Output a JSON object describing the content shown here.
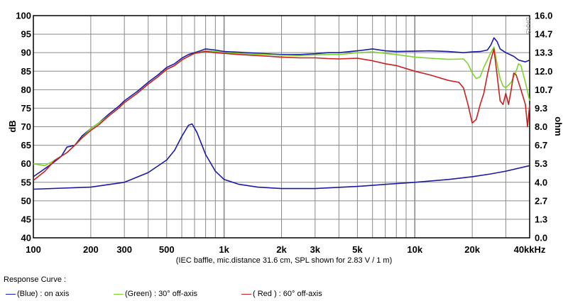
{
  "chart_data": {
    "type": "line",
    "watermark": "DAAS",
    "xlabel_suffix": "kHz",
    "caption": "(IEC baffle, mic.distance 31.6 cm, SPL shown for 2.83 V / 1 m)",
    "x_scale": "log",
    "xlim": [
      100,
      40000
    ],
    "x_ticks": [
      {
        "v": 100,
        "label": "100"
      },
      {
        "v": 200,
        "label": "200"
      },
      {
        "v": 300,
        "label": "300"
      },
      {
        "v": 500,
        "label": "500"
      },
      {
        "v": 1000,
        "label": "1k"
      },
      {
        "v": 2000,
        "label": "2k"
      },
      {
        "v": 3000,
        "label": "3k"
      },
      {
        "v": 5000,
        "label": "5k"
      },
      {
        "v": 10000,
        "label": "10k"
      },
      {
        "v": 20000,
        "label": "20k"
      },
      {
        "v": 40000,
        "label": "40k"
      }
    ],
    "y_left": {
      "label": "dB",
      "lim": [
        40,
        100
      ],
      "ticks": [
        "40",
        "45",
        "50",
        "55",
        "60",
        "65",
        "70",
        "75",
        "80",
        "85",
        "90",
        "95",
        "100"
      ]
    },
    "y_right": {
      "label": "ohm",
      "lim": [
        0,
        16
      ],
      "ticks": [
        "0.0",
        "1.3",
        "2.7",
        "4.0",
        "5.3",
        "6.7",
        "8.0",
        "9.3",
        "10.7",
        "12.0",
        "13.3",
        "14.7",
        "16.0"
      ]
    },
    "grid": true,
    "series": [
      {
        "name": "(Blue)  : on axis",
        "color": "#1a1aa6",
        "axis": "left",
        "points": [
          [
            100,
            56.5
          ],
          [
            110,
            58
          ],
          [
            125,
            60
          ],
          [
            140,
            62
          ],
          [
            150,
            64.5
          ],
          [
            165,
            65
          ],
          [
            180,
            67.5
          ],
          [
            200,
            69.5
          ],
          [
            220,
            71
          ],
          [
            250,
            73.5
          ],
          [
            280,
            75.5
          ],
          [
            300,
            77
          ],
          [
            350,
            79.5
          ],
          [
            400,
            82
          ],
          [
            450,
            84
          ],
          [
            500,
            86
          ],
          [
            550,
            87
          ],
          [
            600,
            88.5
          ],
          [
            650,
            89.5
          ],
          [
            700,
            90
          ],
          [
            750,
            90.5
          ],
          [
            800,
            91
          ],
          [
            900,
            90.7
          ],
          [
            1000,
            90.3
          ],
          [
            1200,
            90.1
          ],
          [
            1500,
            89.8
          ],
          [
            2000,
            89.5
          ],
          [
            2500,
            89.5
          ],
          [
            3000,
            89.7
          ],
          [
            3500,
            90
          ],
          [
            4000,
            90
          ],
          [
            5000,
            90.5
          ],
          [
            6000,
            91
          ],
          [
            7000,
            90.5
          ],
          [
            8000,
            90.3
          ],
          [
            10000,
            90.4
          ],
          [
            12000,
            90.5
          ],
          [
            15000,
            90.3
          ],
          [
            18000,
            90
          ],
          [
            20000,
            90.2
          ],
          [
            22000,
            90.3
          ],
          [
            24000,
            90.7
          ],
          [
            25000,
            92
          ],
          [
            26000,
            94
          ],
          [
            27000,
            93
          ],
          [
            28000,
            91
          ],
          [
            30000,
            90
          ],
          [
            33000,
            89
          ],
          [
            35000,
            88
          ],
          [
            38000,
            87.5
          ],
          [
            40000,
            88
          ]
        ]
      },
      {
        "name": "(Green) : 30° off-axis",
        "color": "#7ad62b",
        "axis": "left",
        "points": [
          [
            100,
            60
          ],
          [
            115,
            59.5
          ],
          [
            130,
            61
          ],
          [
            150,
            63
          ],
          [
            165,
            65
          ],
          [
            180,
            67
          ],
          [
            200,
            69.5
          ],
          [
            220,
            71
          ],
          [
            250,
            73
          ],
          [
            280,
            75
          ],
          [
            300,
            76.5
          ],
          [
            350,
            79
          ],
          [
            400,
            81.5
          ],
          [
            450,
            83.5
          ],
          [
            500,
            85.5
          ],
          [
            550,
            86.5
          ],
          [
            600,
            88
          ],
          [
            650,
            89
          ],
          [
            700,
            89.8
          ],
          [
            800,
            90.5
          ],
          [
            900,
            90.3
          ],
          [
            1000,
            90
          ],
          [
            1200,
            89.8
          ],
          [
            1500,
            89.6
          ],
          [
            2000,
            89.3
          ],
          [
            2500,
            89.2
          ],
          [
            3000,
            89.4
          ],
          [
            3500,
            89.5
          ],
          [
            4000,
            89.5
          ],
          [
            5000,
            90
          ],
          [
            6000,
            90.2
          ],
          [
            7000,
            89.8
          ],
          [
            8000,
            89.5
          ],
          [
            10000,
            88.8
          ],
          [
            12000,
            88.5
          ],
          [
            15000,
            88.2
          ],
          [
            18000,
            88.3
          ],
          [
            19000,
            87
          ],
          [
            20000,
            84.5
          ],
          [
            21000,
            83
          ],
          [
            22000,
            83.5
          ],
          [
            23000,
            86
          ],
          [
            24000,
            88
          ],
          [
            25000,
            90
          ],
          [
            26000,
            91.5
          ],
          [
            27000,
            87
          ],
          [
            28000,
            83
          ],
          [
            29000,
            81
          ],
          [
            30000,
            80.5
          ],
          [
            32000,
            82
          ],
          [
            34000,
            85
          ],
          [
            35000,
            87
          ],
          [
            36000,
            86.5
          ],
          [
            38000,
            82
          ],
          [
            40000,
            77
          ]
        ]
      },
      {
        "name": "( Red ) : 60° off-axis",
        "color": "#cc1f1f",
        "axis": "left",
        "points": [
          [
            100,
            55.5
          ],
          [
            115,
            58
          ],
          [
            130,
            61
          ],
          [
            150,
            63
          ],
          [
            165,
            65
          ],
          [
            180,
            67
          ],
          [
            200,
            69
          ],
          [
            220,
            70.5
          ],
          [
            250,
            73
          ],
          [
            280,
            75
          ],
          [
            300,
            76.5
          ],
          [
            350,
            79
          ],
          [
            400,
            81.5
          ],
          [
            450,
            83.5
          ],
          [
            500,
            85.5
          ],
          [
            550,
            86.5
          ],
          [
            600,
            88
          ],
          [
            650,
            89
          ],
          [
            700,
            89.8
          ],
          [
            800,
            90.3
          ],
          [
            900,
            90
          ],
          [
            1000,
            89.8
          ],
          [
            1200,
            89.5
          ],
          [
            1500,
            89.2
          ],
          [
            2000,
            88.8
          ],
          [
            2500,
            88.6
          ],
          [
            3000,
            88.6
          ],
          [
            3500,
            88.4
          ],
          [
            4000,
            88.3
          ],
          [
            5000,
            88.5
          ],
          [
            6000,
            87.8
          ],
          [
            7000,
            87
          ],
          [
            8000,
            86.5
          ],
          [
            10000,
            85
          ],
          [
            12000,
            84
          ],
          [
            15000,
            82.5
          ],
          [
            17000,
            82
          ],
          [
            18000,
            80.5
          ],
          [
            19000,
            76
          ],
          [
            20000,
            71
          ],
          [
            21000,
            72
          ],
          [
            22000,
            76
          ],
          [
            23000,
            79
          ],
          [
            24000,
            84
          ],
          [
            25000,
            88
          ],
          [
            26000,
            91
          ],
          [
            27000,
            84
          ],
          [
            28000,
            77
          ],
          [
            29000,
            76
          ],
          [
            30000,
            79
          ],
          [
            31000,
            76
          ],
          [
            32000,
            80
          ],
          [
            33000,
            84.5
          ],
          [
            34000,
            84
          ],
          [
            36000,
            80
          ],
          [
            38000,
            76
          ],
          [
            39000,
            70
          ],
          [
            40000,
            76
          ]
        ]
      },
      {
        "name": "impedance",
        "color": "#1a1aa6",
        "axis": "right",
        "points": [
          [
            100,
            3.5
          ],
          [
            200,
            3.65
          ],
          [
            300,
            4.0
          ],
          [
            400,
            4.7
          ],
          [
            500,
            5.6
          ],
          [
            550,
            6.3
          ],
          [
            600,
            7.3
          ],
          [
            650,
            8.1
          ],
          [
            680,
            8.2
          ],
          [
            720,
            7.6
          ],
          [
            800,
            6.0
          ],
          [
            900,
            4.8
          ],
          [
            1000,
            4.2
          ],
          [
            1200,
            3.85
          ],
          [
            1500,
            3.65
          ],
          [
            2000,
            3.55
          ],
          [
            3000,
            3.55
          ],
          [
            5000,
            3.7
          ],
          [
            7000,
            3.85
          ],
          [
            10000,
            4.0
          ],
          [
            15000,
            4.2
          ],
          [
            20000,
            4.4
          ],
          [
            25000,
            4.6
          ],
          [
            30000,
            4.8
          ],
          [
            40000,
            5.2
          ]
        ]
      }
    ]
  },
  "legend": {
    "title": "Response Curve :",
    "items": [
      {
        "label": "(Blue)  : on axis",
        "color": "#1a1aa6"
      },
      {
        "label": "(Green) : 30° off-axis",
        "color": "#7ad62b"
      },
      {
        "label": "( Red ) : 60° off-axis",
        "color": "#cc1f1f"
      }
    ]
  }
}
